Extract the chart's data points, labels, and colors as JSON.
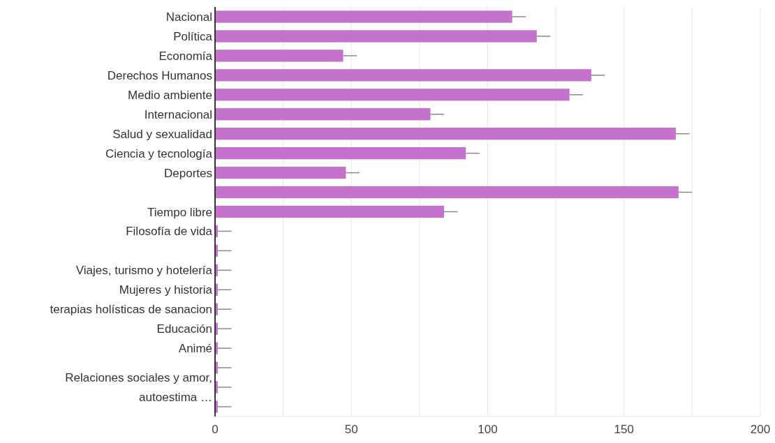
{
  "chart_data": {
    "type": "bar",
    "orientation": "horizontal",
    "categories": [
      "Nacional",
      "Política",
      "Economía",
      "Derechos Humanos",
      "Medio ambiente",
      "Internacional",
      "Salud y sexualidad",
      "Ciencia y tecnología",
      "Deportes",
      null,
      "Tiempo libre",
      "Filosofía de vida",
      null,
      "Viajes, turismo y hotelería",
      "Mujeres y historia",
      "terapias holísticas de sanacion",
      "Educación",
      "Animé",
      null,
      "Relaciones sociales y amor, autoestima …",
      null
    ],
    "values": [
      109,
      118,
      47,
      138,
      130,
      79,
      169,
      92,
      48,
      170,
      84,
      1,
      1,
      1,
      1,
      1,
      1,
      1,
      1,
      1,
      1
    ],
    "errors": [
      [
        109,
        114
      ],
      [
        118,
        123
      ],
      [
        47,
        52
      ],
      [
        138,
        143
      ],
      [
        130,
        135
      ],
      [
        79,
        84
      ],
      [
        169,
        174
      ],
      [
        92,
        97
      ],
      [
        48,
        53
      ],
      [
        170,
        175
      ],
      [
        84,
        89
      ],
      [
        1,
        6
      ],
      [
        1,
        6
      ],
      [
        1,
        6
      ],
      [
        1,
        6
      ],
      [
        1,
        6
      ],
      [
        1,
        6
      ],
      [
        1,
        6
      ],
      [
        1,
        6
      ],
      [
        1,
        6
      ],
      [
        1,
        6
      ]
    ],
    "color": "#c572cd",
    "xlim": [
      0,
      200
    ],
    "xticks": [
      0,
      {
        "value": 25,
        "label": null
      },
      50,
      {
        "value": 75,
        "label": null
      },
      100,
      {
        "value": 125,
        "label": null
      },
      150,
      {
        "value": 175,
        "label": null
      },
      200
    ],
    "grid": "x"
  }
}
